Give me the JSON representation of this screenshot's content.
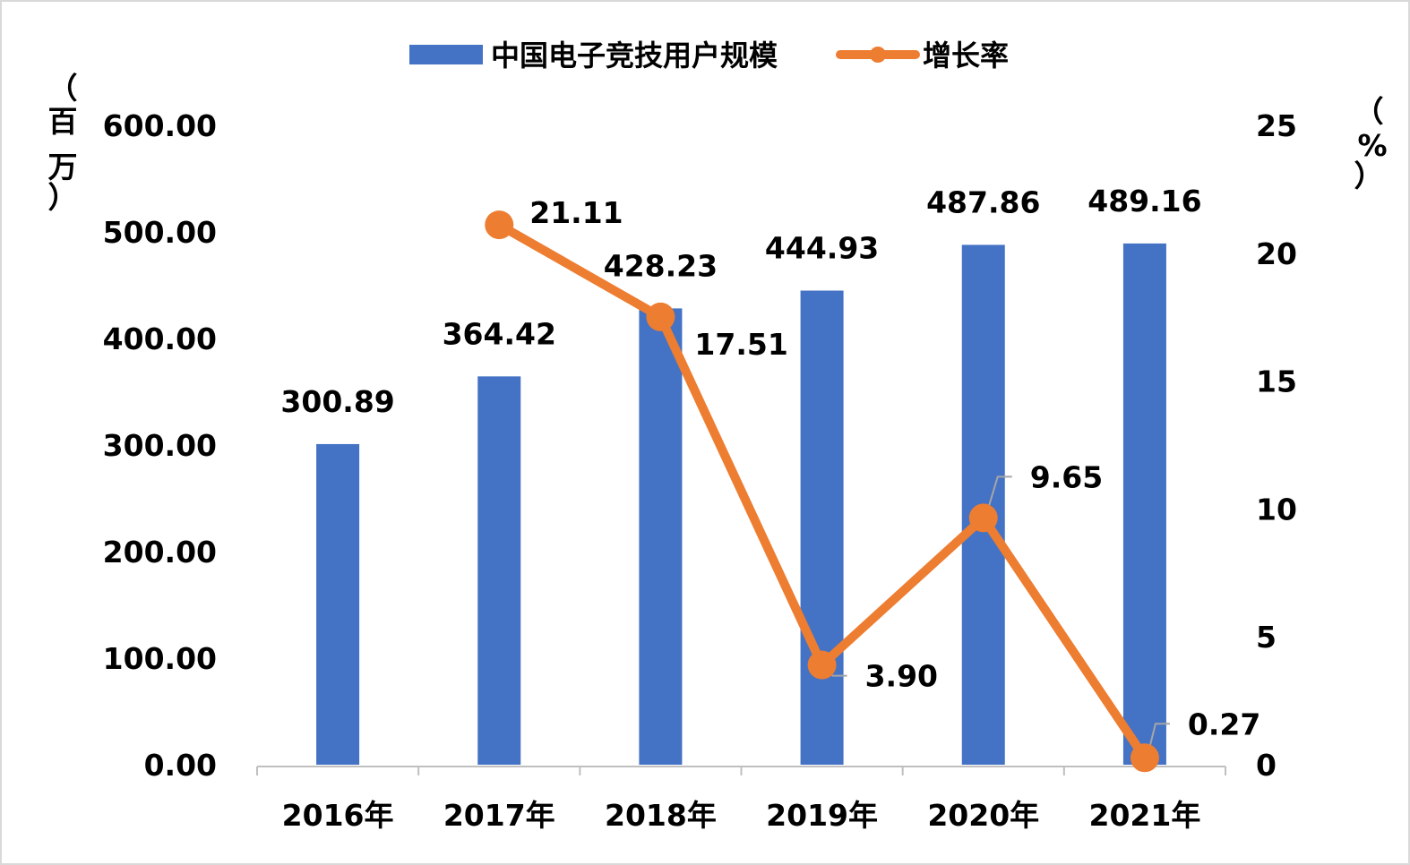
{
  "chart_data": {
    "type": "bar",
    "categories": [
      "2016年",
      "2017年",
      "2018年",
      "2019年",
      "2020年",
      "2021年"
    ],
    "series": [
      {
        "name": "中国电子竞技用户规模",
        "type": "bar",
        "axis": "left",
        "values": [
          300.89,
          364.42,
          428.23,
          444.93,
          487.86,
          489.16
        ],
        "labels": [
          "300.89",
          "364.42",
          "428.23",
          "444.93",
          "487.86",
          "489.16"
        ]
      },
      {
        "name": "增长率",
        "type": "line",
        "axis": "right",
        "values": [
          null,
          21.11,
          17.51,
          3.9,
          9.65,
          0.27
        ],
        "labels": [
          "",
          "21.11",
          "17.51",
          "3.90",
          "9.65",
          "0.27"
        ]
      }
    ],
    "left_axis": {
      "label_chars": [
        "（",
        "百",
        "万",
        "）"
      ],
      "ticks": [
        "0.00",
        "100.00",
        "200.00",
        "300.00",
        "400.00",
        "500.00",
        "600.00"
      ],
      "ylim": [
        0,
        600
      ]
    },
    "right_axis": {
      "label_chars": [
        "（",
        "%",
        "）"
      ],
      "ticks": [
        "0",
        "5",
        "10",
        "15",
        "20",
        "25"
      ],
      "ylim": [
        0,
        25
      ]
    },
    "legend_position": "top",
    "grid": false,
    "colors": {
      "bar": "#4472c4",
      "line": "#ed7d31",
      "axis": "#bfbfbf",
      "leader": "#a6a6a6"
    }
  }
}
